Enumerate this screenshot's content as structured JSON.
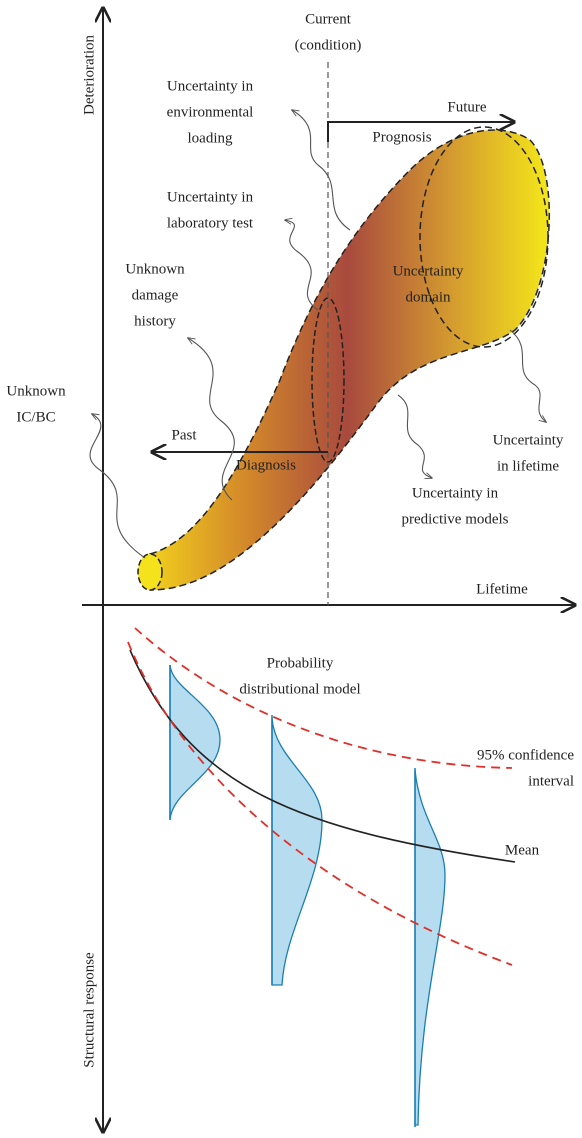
{
  "axes": {
    "y_upper": "Deterioration",
    "y_lower": "Structural response",
    "x": "Lifetime"
  },
  "labels": {
    "current": [
      "Current",
      "(condition)"
    ],
    "future": [
      "Future"
    ],
    "prognosis": [
      "Prognosis"
    ],
    "past": [
      "Past"
    ],
    "diagnosis": [
      "Diagnosis"
    ],
    "uncertainty_domain": [
      "Uncertainty",
      "domain"
    ],
    "env_loading": [
      "Uncertainty in",
      "environmental",
      "loading"
    ],
    "lab_test": [
      "Uncertainty in",
      "laboratory test"
    ],
    "damage_history": [
      "Unknown",
      "damage",
      "history"
    ],
    "ic_bc": [
      "Unknown",
      "IC/BC"
    ],
    "lifetime_unc": [
      "Uncertainty",
      "in lifetime"
    ],
    "predictive": [
      "Uncertainty in",
      "predictive models"
    ],
    "prob_model": [
      "Probability",
      "distributional model"
    ],
    "confidence": [
      "95% confidence",
      "interval"
    ],
    "mean": [
      "Mean"
    ]
  }
}
